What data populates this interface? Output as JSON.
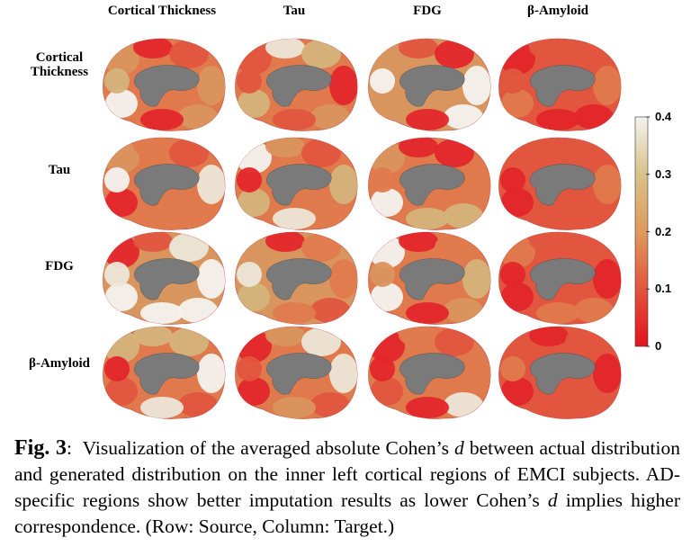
{
  "columns": [
    "Cortical Thickness",
    "Tau",
    "FDG",
    "β-Amyloid"
  ],
  "rows": [
    "Cortical Thickness",
    "Tau",
    "FDG",
    "β-Amyloid"
  ],
  "colorbar": {
    "ticks": [
      0,
      0.1,
      0.2,
      0.3,
      0.4
    ],
    "range": [
      0,
      0.4
    ]
  },
  "caption": {
    "label": "Fig. 3",
    "separator": ":",
    "segments": [
      "Visualization of the averaged absolute Cohen’s ",
      "d",
      " between actual distribution and generated distribution on the inner left cortical regions of EMCI subjects. AD-specific regions show better imputation results as lower Cohen’s ",
      "d",
      " implies higher correspondence. (Row: Source, Column: Target.)"
    ]
  }
}
